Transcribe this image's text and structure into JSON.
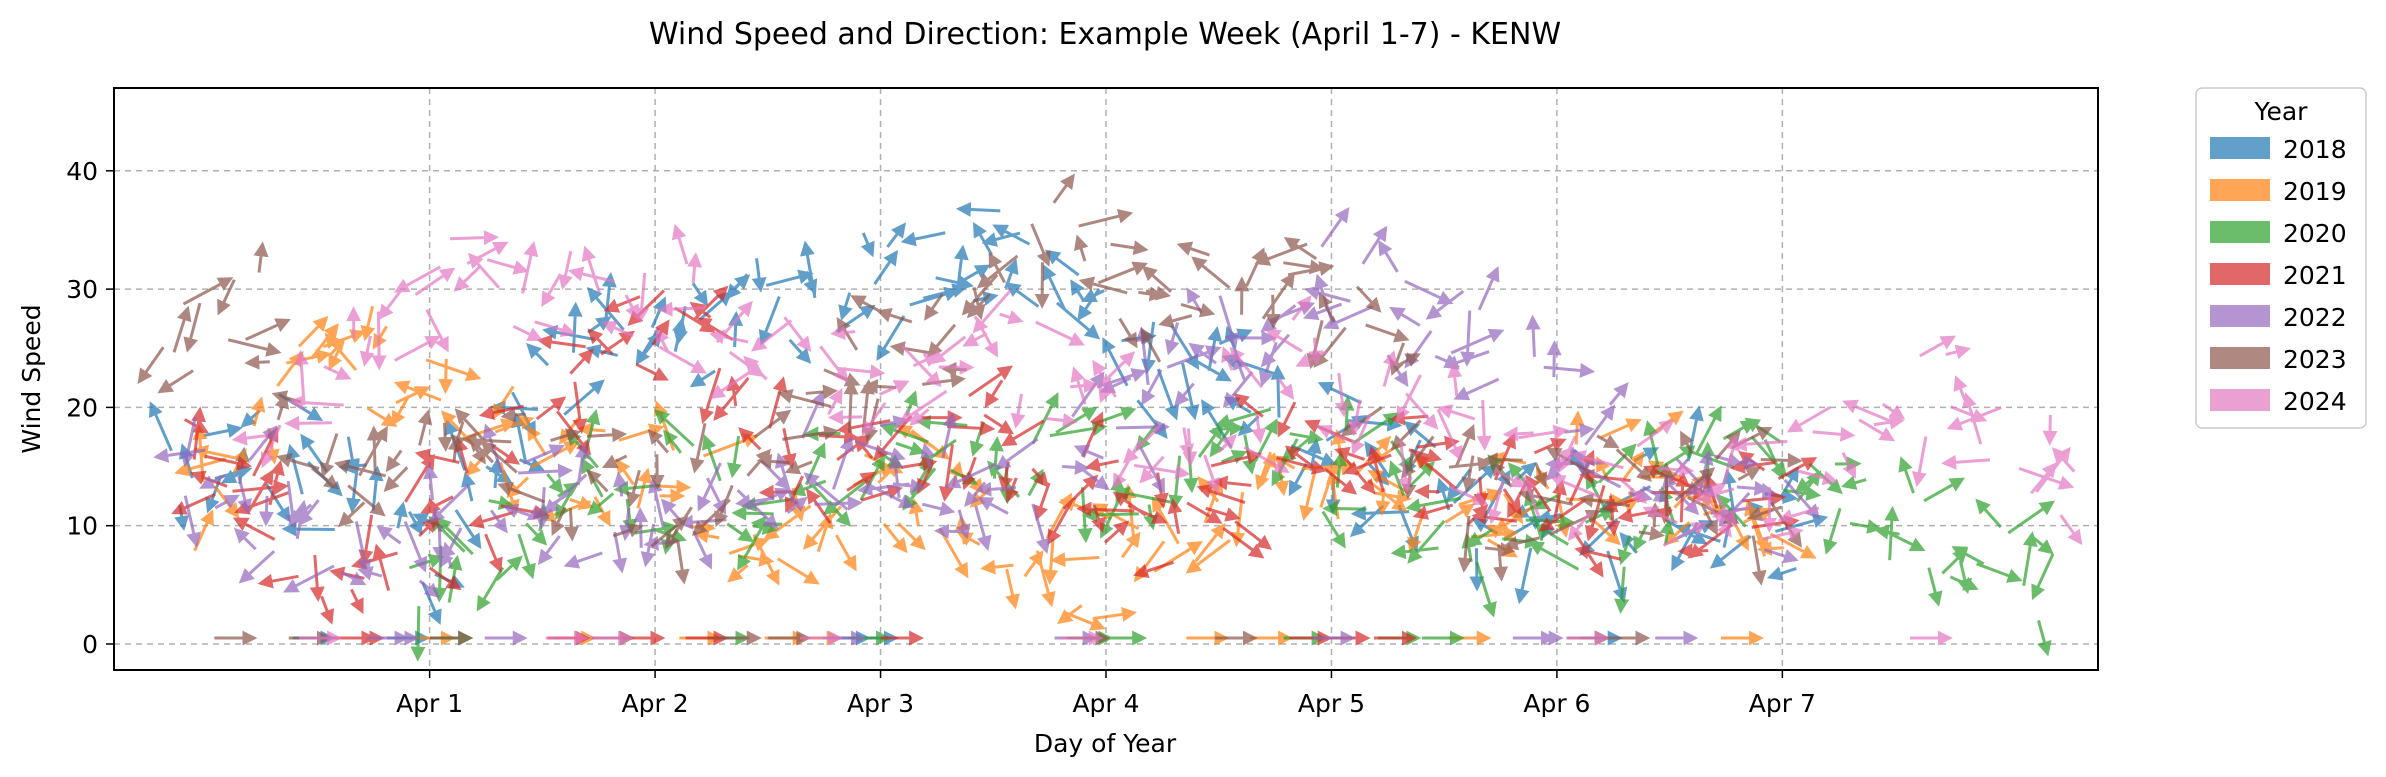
{
  "chart_data": {
    "type": "quiver",
    "title": "Wind Speed and Direction: Example Week (April 1-7) - KENW",
    "xlabel": "Day of Year",
    "ylabel": "Wind Speed",
    "xlim": [
      89.6,
      98.4
    ],
    "ylim": [
      -2.2,
      47
    ],
    "x_ticks": [
      {
        "value": 91,
        "label": "Apr 1"
      },
      {
        "value": 92,
        "label": "Apr 2"
      },
      {
        "value": 93,
        "label": "Apr 3"
      },
      {
        "value": 94,
        "label": "Apr 4"
      },
      {
        "value": 95,
        "label": "Apr 5"
      },
      {
        "value": 96,
        "label": "Apr 6"
      },
      {
        "value": 97,
        "label": "Apr 7"
      }
    ],
    "y_ticks": [
      {
        "value": 0,
        "label": "0"
      },
      {
        "value": 10,
        "label": "10"
      },
      {
        "value": 20,
        "label": "20"
      },
      {
        "value": 30,
        "label": "30"
      },
      {
        "value": 40,
        "label": "40"
      }
    ],
    "grid": true,
    "legend": {
      "title": "Year",
      "placement": "outside-right"
    },
    "series": [
      {
        "name": "2018",
        "color": "#1f77b4",
        "x_start": 89.85,
        "x_end": 97.05,
        "segments": [
          [
            0,
            12
          ],
          [
            5,
            18
          ],
          [
            10,
            14
          ],
          [
            15,
            8
          ],
          [
            22,
            20
          ],
          [
            30,
            26
          ],
          [
            40,
            30
          ],
          [
            50,
            34
          ],
          [
            58,
            24
          ],
          [
            65,
            20
          ],
          [
            70,
            18
          ],
          [
            80,
            10
          ],
          [
            90,
            12
          ],
          [
            98,
            8
          ]
        ]
      },
      {
        "name": "2019",
        "color": "#ff7f0e",
        "x_start": 89.95,
        "x_end": 97.0,
        "segments": [
          [
            0,
            10
          ],
          [
            5,
            20
          ],
          [
            12,
            25
          ],
          [
            20,
            18
          ],
          [
            28,
            14
          ],
          [
            35,
            10
          ],
          [
            45,
            14
          ],
          [
            50,
            10
          ],
          [
            55,
            6
          ],
          [
            62,
            10
          ],
          [
            70,
            14
          ],
          [
            80,
            12
          ],
          [
            90,
            16
          ],
          [
            98,
            10
          ]
        ]
      },
      {
        "name": "2020",
        "color": "#2ca02c",
        "x_start": 90.9,
        "x_end": 98.2,
        "segments": [
          [
            0,
            6
          ],
          [
            10,
            12
          ],
          [
            20,
            14
          ],
          [
            30,
            16
          ],
          [
            40,
            14
          ],
          [
            50,
            18
          ],
          [
            60,
            12
          ],
          [
            70,
            10
          ],
          [
            80,
            14
          ],
          [
            90,
            8
          ],
          [
            98,
            6
          ]
        ]
      },
      {
        "name": "2021",
        "color": "#d62728",
        "x_start": 89.9,
        "x_end": 97.0,
        "segments": [
          [
            0,
            16
          ],
          [
            10,
            6
          ],
          [
            20,
            14
          ],
          [
            25,
            24
          ],
          [
            30,
            30
          ],
          [
            40,
            12
          ],
          [
            50,
            20
          ],
          [
            55,
            14
          ],
          [
            60,
            10
          ],
          [
            70,
            18
          ],
          [
            80,
            14
          ],
          [
            90,
            10
          ],
          [
            98,
            12
          ]
        ]
      },
      {
        "name": "2022",
        "color": "#9467bd",
        "x_start": 89.9,
        "x_end": 97.0,
        "segments": [
          [
            0,
            16
          ],
          [
            10,
            8
          ],
          [
            20,
            12
          ],
          [
            30,
            10
          ],
          [
            40,
            16
          ],
          [
            50,
            12
          ],
          [
            60,
            22
          ],
          [
            70,
            30
          ],
          [
            80,
            26
          ],
          [
            90,
            14
          ],
          [
            98,
            10
          ]
        ]
      },
      {
        "name": "2023",
        "color": "#8c564b",
        "x_start": 89.8,
        "x_end": 97.0,
        "segments": [
          [
            0,
            26
          ],
          [
            5,
            30
          ],
          [
            10,
            14
          ],
          [
            20,
            18
          ],
          [
            30,
            12
          ],
          [
            40,
            20
          ],
          [
            50,
            28
          ],
          [
            55,
            36
          ],
          [
            60,
            28
          ],
          [
            70,
            30
          ],
          [
            80,
            12
          ],
          [
            90,
            14
          ],
          [
            98,
            12
          ]
        ]
      },
      {
        "name": "2024",
        "color": "#e377c2",
        "x_start": 90.3,
        "x_end": 98.3,
        "segments": [
          [
            0,
            16
          ],
          [
            10,
            30
          ],
          [
            20,
            30
          ],
          [
            30,
            22
          ],
          [
            40,
            26
          ],
          [
            50,
            14
          ],
          [
            55,
            26
          ],
          [
            60,
            20
          ],
          [
            70,
            14
          ],
          [
            80,
            10
          ],
          [
            90,
            22
          ],
          [
            98,
            14
          ]
        ]
      }
    ]
  }
}
